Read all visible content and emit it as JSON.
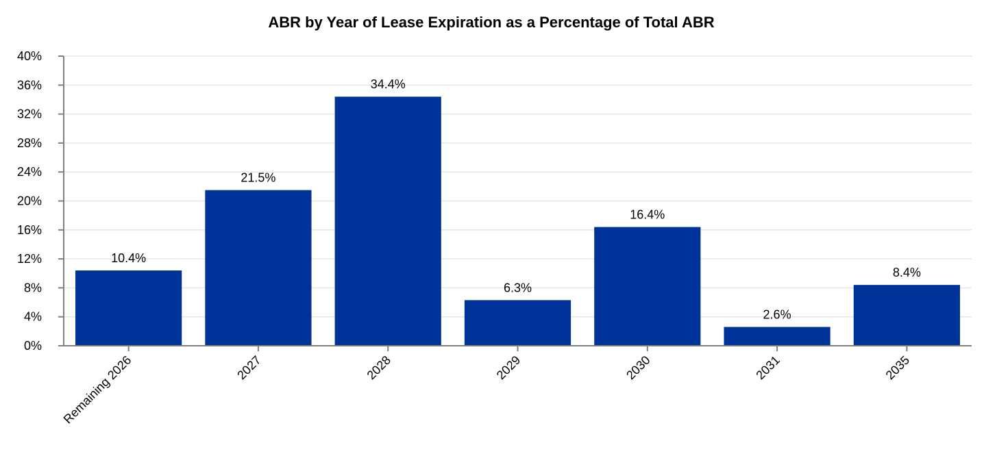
{
  "chart_data": {
    "type": "bar",
    "title": "ABR by Year of Lease Expiration as a Percentage of Total ABR",
    "xlabel": "",
    "ylabel": "",
    "categories": [
      "Remaining 2026",
      "2027",
      "2028",
      "2029",
      "2030",
      "2031",
      "2035"
    ],
    "values": [
      10.4,
      21.5,
      34.4,
      6.3,
      16.4,
      2.6,
      8.4
    ],
    "data_labels": [
      "10.4%",
      "21.5%",
      "34.4%",
      "6.3%",
      "16.4%",
      "2.6%",
      "8.4%"
    ],
    "ylim": [
      0,
      40
    ],
    "yticks": [
      0,
      4,
      8,
      12,
      16,
      20,
      24,
      28,
      32,
      36,
      40
    ],
    "ytick_labels": [
      "0%",
      "4%",
      "8%",
      "12%",
      "16%",
      "20%",
      "24%",
      "28%",
      "32%",
      "36%",
      "40%"
    ],
    "grid": true,
    "legend": "none",
    "bar_color": "#003399"
  }
}
